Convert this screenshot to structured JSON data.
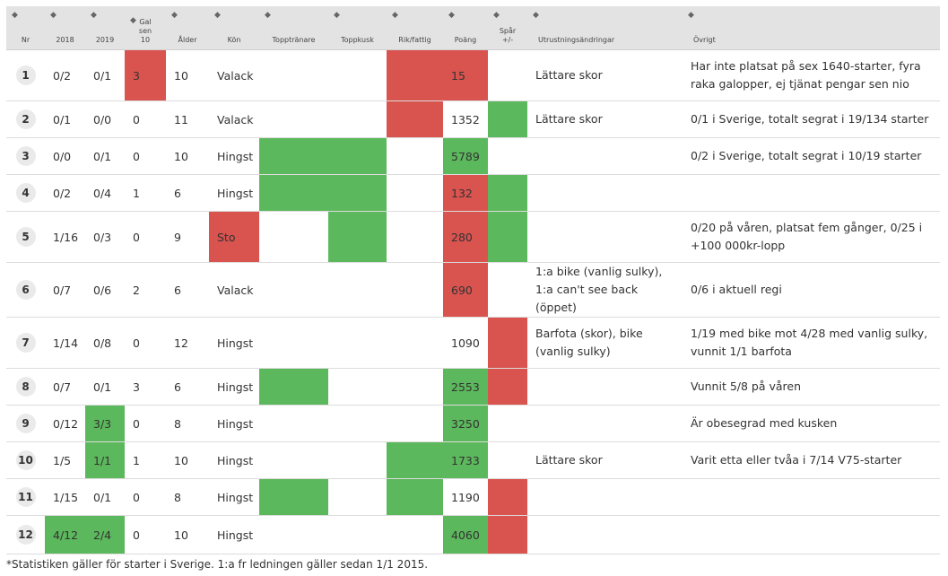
{
  "columns": [
    "Nr",
    "2018",
    "2019",
    "Gal sen 10",
    "Ålder",
    "Kön",
    "Topptränare",
    "Toppkusk",
    "Rik/fattig",
    "Poäng",
    "Spår +/-",
    "Utrustningsändringar",
    "Övrigt"
  ],
  "colors": {
    "green": "#5cb85c",
    "red": "#d9534f"
  },
  "rows": [
    {
      "nr": "1",
      "y2018": "0/2",
      "y2019": "0/1",
      "gal": "3",
      "alder": "10",
      "kon": "Valack",
      "poang": "15",
      "utr": "Lättare skor",
      "ovrigt": "Har inte platsat på sex 1640-starter, fyra raka galopper, ej tjänat pengar sen nio",
      "hl": {
        "gal": "r",
        "rik": "r",
        "poang": "r"
      }
    },
    {
      "nr": "2",
      "y2018": "0/1",
      "y2019": "0/0",
      "gal": "0",
      "alder": "11",
      "kon": "Valack",
      "poang": "1352",
      "utr": "Lättare skor",
      "ovrigt": "0/1 i Sverige, totalt segrat i 19/134 starter",
      "hl": {
        "rik": "r",
        "spar": "g"
      }
    },
    {
      "nr": "3",
      "y2018": "0/0",
      "y2019": "0/1",
      "gal": "0",
      "alder": "10",
      "kon": "Hingst",
      "poang": "5789",
      "utr": "",
      "ovrigt": "0/2 i Sverige, totalt segrat i 10/19 starter",
      "hl": {
        "tt": "g",
        "tk": "g",
        "poang": "g"
      }
    },
    {
      "nr": "4",
      "y2018": "0/2",
      "y2019": "0/4",
      "gal": "1",
      "alder": "6",
      "kon": "Hingst",
      "poang": "132",
      "utr": "",
      "ovrigt": "",
      "hl": {
        "tt": "g",
        "tk": "g",
        "poang": "r",
        "spar": "g"
      }
    },
    {
      "nr": "5",
      "y2018": "1/16",
      "y2019": "0/3",
      "gal": "0",
      "alder": "9",
      "kon": "Sto",
      "poang": "280",
      "utr": "",
      "ovrigt": "0/20 på våren, platsat fem gånger, 0/25 i +100 000kr-lopp",
      "hl": {
        "kon": "r",
        "tk": "g",
        "poang": "r",
        "spar": "g"
      }
    },
    {
      "nr": "6",
      "y2018": "0/7",
      "y2019": "0/6",
      "gal": "2",
      "alder": "6",
      "kon": "Valack",
      "poang": "690",
      "utr": "1:a bike (vanlig sulky), 1:a can't see back (öppet)",
      "ovrigt": "0/6 i aktuell regi",
      "hl": {
        "poang": "r"
      }
    },
    {
      "nr": "7",
      "y2018": "1/14",
      "y2019": "0/8",
      "gal": "0",
      "alder": "12",
      "kon": "Hingst",
      "poang": "1090",
      "utr": "Barfota (skor), bike (vanlig sulky)",
      "ovrigt": "1/19 med bike mot 4/28 med vanlig sulky, vunnit 1/1 barfota",
      "hl": {
        "spar": "r"
      }
    },
    {
      "nr": "8",
      "y2018": "0/7",
      "y2019": "0/1",
      "gal": "3",
      "alder": "6",
      "kon": "Hingst",
      "poang": "2553",
      "utr": "",
      "ovrigt": "Vunnit 5/8 på våren",
      "hl": {
        "tt": "g",
        "poang": "g",
        "spar": "r"
      }
    },
    {
      "nr": "9",
      "y2018": "0/12",
      "y2019": "3/3",
      "gal": "0",
      "alder": "8",
      "kon": "Hingst",
      "poang": "3250",
      "utr": "",
      "ovrigt": "Är obesegrad med kusken",
      "hl": {
        "y2019": "g",
        "poang": "g"
      }
    },
    {
      "nr": "10",
      "y2018": "1/5",
      "y2019": "1/1",
      "gal": "1",
      "alder": "10",
      "kon": "Hingst",
      "poang": "1733",
      "utr": "Lättare skor",
      "ovrigt": "Varit etta eller tvåa i 7/14 V75-starter",
      "hl": {
        "y2019": "g",
        "rik": "g",
        "poang": "g"
      }
    },
    {
      "nr": "11",
      "y2018": "1/15",
      "y2019": "0/1",
      "gal": "0",
      "alder": "8",
      "kon": "Hingst",
      "poang": "1190",
      "utr": "",
      "ovrigt": "",
      "hl": {
        "tt": "g",
        "rik": "g",
        "spar": "r"
      }
    },
    {
      "nr": "12",
      "y2018": "4/12",
      "y2019": "2/4",
      "gal": "0",
      "alder": "10",
      "kon": "Hingst",
      "poang": "4060",
      "utr": "",
      "ovrigt": "",
      "hl": {
        "y2018": "g",
        "y2019": "g",
        "poang": "g",
        "spar": "r"
      }
    }
  ],
  "footnote": "*Statistiken gäller för starter i Sverige. 1:a fr ledningen gäller sedan 1/1 2015."
}
